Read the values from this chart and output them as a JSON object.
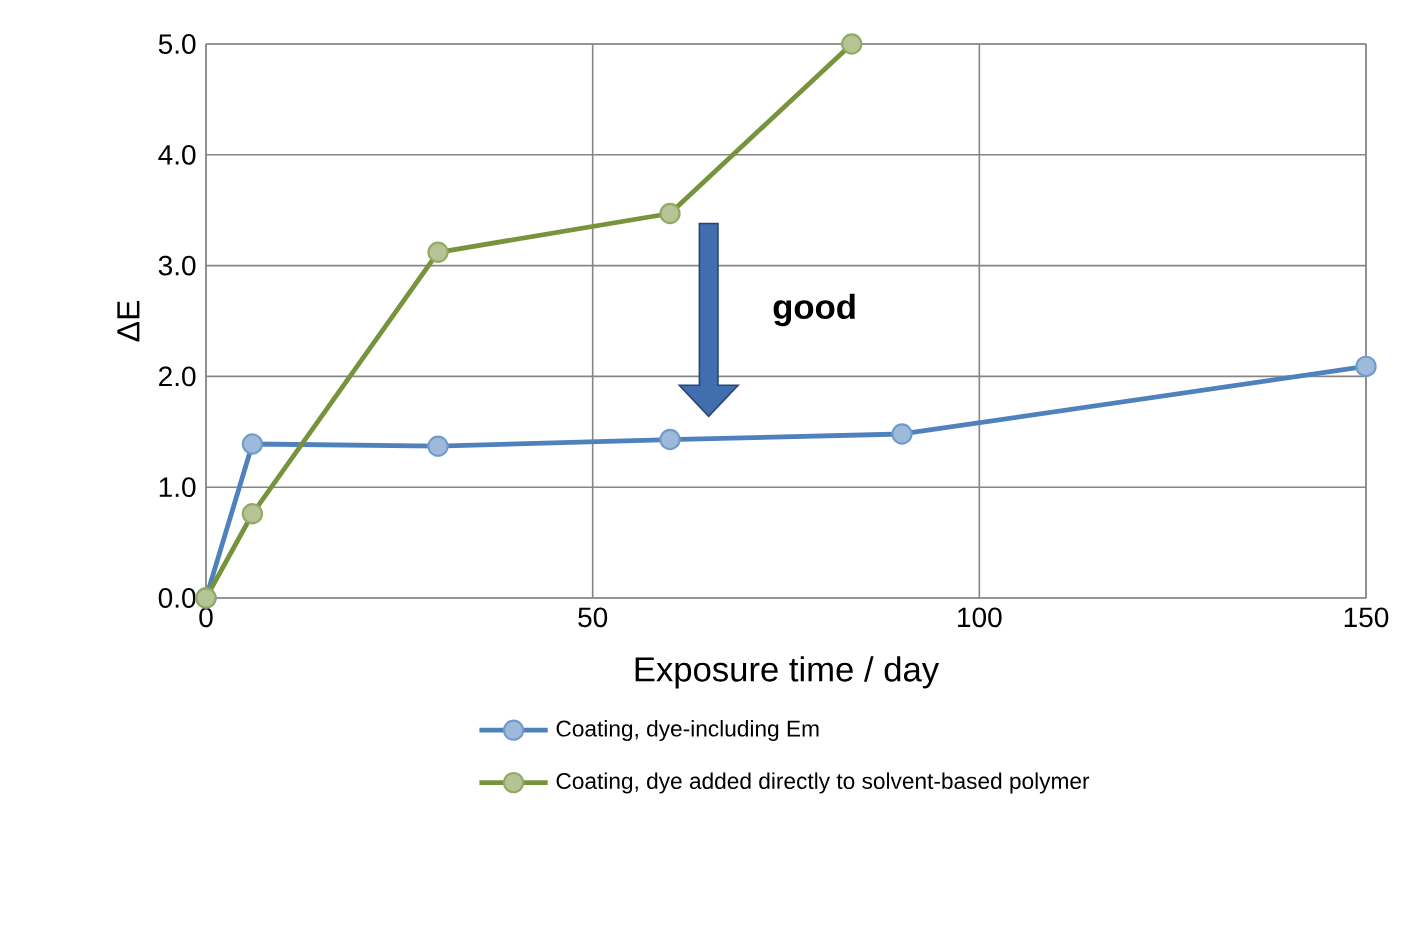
{
  "chart_data": {
    "type": "line",
    "xlabel": "Exposure time / day",
    "ylabel": "ΔE",
    "xlim": [
      0,
      150
    ],
    "xticks": [
      0,
      50,
      100,
      150
    ],
    "ylim": [
      0,
      5
    ],
    "yticks": [
      {
        "value": 0,
        "label": "0.0"
      },
      {
        "value": 1,
        "label": "1.0"
      },
      {
        "value": 2,
        "label": "2.0"
      },
      {
        "value": 3,
        "label": "3.0"
      },
      {
        "value": 4,
        "label": "4.0"
      },
      {
        "value": 5,
        "label": "5.0"
      }
    ],
    "grid": true,
    "legend": "bottom",
    "marker": "circle",
    "line_style": "solid",
    "annotations": [
      "good"
    ],
    "series": [
      {
        "name": "Coating, dye-including Em",
        "color": "#4f81bd",
        "x": [
          0,
          6,
          30,
          60,
          90,
          150
        ],
        "values": [
          0,
          1.39,
          1.37,
          1.43,
          1.48,
          2.09
        ]
      },
      {
        "name": "Coating, dye added directly to solvent-based polymer",
        "color": "#77933c",
        "x": [
          0,
          6,
          30,
          60,
          83.5
        ],
        "values": [
          0,
          0.76,
          3.12,
          3.47,
          5.0
        ]
      }
    ]
  }
}
